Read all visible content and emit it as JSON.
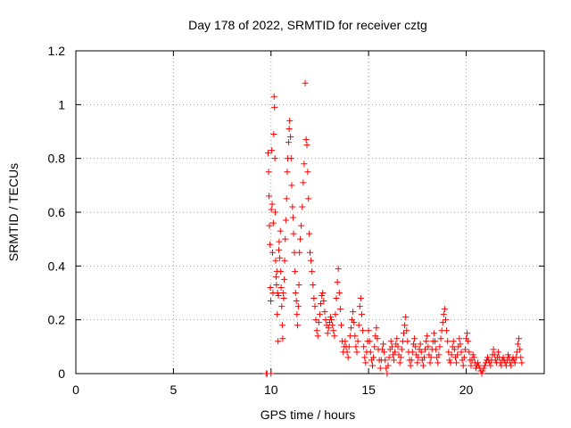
{
  "chart_data": {
    "type": "scatter",
    "title": "Day 178 of 2022, SRMTID for receiver cztg",
    "xlabel": "GPS time / hours",
    "ylabel": "SRMTID / TECUs",
    "xlim": [
      0,
      24
    ],
    "ylim": [
      0,
      1.2
    ],
    "xticks": [
      0,
      5,
      10,
      15,
      20
    ],
    "yticks": [
      0,
      0.2,
      0.4,
      0.6,
      0.8,
      1,
      1.2
    ],
    "xtick_labels": [
      "0",
      "5",
      "10",
      "15",
      "20"
    ],
    "ytick_labels": [
      "0",
      "0.2",
      "0.4",
      "0.6",
      "0.8",
      "1",
      "1.2"
    ],
    "grid": true,
    "marker": "+",
    "color": "#ff0000",
    "series": [
      {
        "name": "SRMTID",
        "points": [
          [
            9.75,
            0.0
          ],
          [
            9.8,
            0.0
          ],
          [
            9.85,
            0.82
          ],
          [
            9.88,
            0.75
          ],
          [
            9.9,
            0.66
          ],
          [
            9.92,
            0.55
          ],
          [
            9.95,
            0.48
          ],
          [
            9.97,
            0.32
          ],
          [
            9.99,
            0.27
          ],
          [
            10.0,
            0.0
          ],
          [
            10.02,
            0.61
          ],
          [
            10.04,
            0.83
          ],
          [
            10.06,
            0.63
          ],
          [
            10.08,
            0.45
          ],
          [
            10.1,
            0.3
          ],
          [
            10.12,
            0.56
          ],
          [
            10.14,
            0.89
          ],
          [
            10.16,
            1.03
          ],
          [
            10.18,
            0.99
          ],
          [
            10.2,
            0.8
          ],
          [
            10.22,
            0.6
          ],
          [
            10.24,
            0.42
          ],
          [
            10.26,
            0.36
          ],
          [
            10.28,
            0.33
          ],
          [
            10.3,
            0.38
          ],
          [
            10.32,
            0.22
          ],
          [
            10.34,
            0.3
          ],
          [
            10.36,
            0.12
          ],
          [
            10.38,
            0.29
          ],
          [
            10.4,
            0.46
          ],
          [
            10.42,
            0.49
          ],
          [
            10.45,
            0.43
          ],
          [
            10.48,
            0.53
          ],
          [
            10.5,
            0.38
          ],
          [
            10.52,
            0.32
          ],
          [
            10.55,
            0.25
          ],
          [
            10.58,
            0.18
          ],
          [
            10.6,
            0.13
          ],
          [
            10.62,
            0.3
          ],
          [
            10.65,
            0.28
          ],
          [
            10.68,
            0.35
          ],
          [
            10.7,
            0.42
          ],
          [
            10.73,
            0.5
          ],
          [
            10.76,
            0.57
          ],
          [
            10.8,
            0.65
          ],
          [
            10.83,
            0.75
          ],
          [
            10.86,
            0.8
          ],
          [
            10.9,
            0.86
          ],
          [
            10.93,
            0.91
          ],
          [
            10.96,
            0.94
          ],
          [
            11.0,
            0.88
          ],
          [
            11.03,
            0.8
          ],
          [
            11.06,
            0.7
          ],
          [
            11.1,
            0.62
          ],
          [
            11.13,
            0.58
          ],
          [
            11.16,
            0.52
          ],
          [
            11.2,
            0.45
          ],
          [
            11.23,
            0.38
          ],
          [
            11.26,
            0.3
          ],
          [
            11.3,
            0.27
          ],
          [
            11.33,
            0.22
          ],
          [
            11.36,
            0.18
          ],
          [
            11.4,
            0.25
          ],
          [
            11.43,
            0.33
          ],
          [
            11.46,
            0.45
          ],
          [
            11.5,
            0.5
          ],
          [
            11.55,
            0.55
          ],
          [
            11.6,
            0.62
          ],
          [
            11.65,
            0.71
          ],
          [
            11.7,
            0.78
          ],
          [
            11.75,
            1.08
          ],
          [
            11.8,
            0.87
          ],
          [
            11.84,
            0.85
          ],
          [
            11.88,
            0.75
          ],
          [
            11.92,
            0.65
          ],
          [
            11.96,
            0.52
          ],
          [
            12.0,
            0.45
          ],
          [
            12.05,
            0.42
          ],
          [
            12.1,
            0.38
          ],
          [
            12.15,
            0.33
          ],
          [
            12.2,
            0.28
          ],
          [
            12.25,
            0.25
          ],
          [
            12.3,
            0.2
          ],
          [
            12.35,
            0.16
          ],
          [
            12.4,
            0.14
          ],
          [
            12.45,
            0.19
          ],
          [
            12.5,
            0.22
          ],
          [
            12.55,
            0.26
          ],
          [
            12.6,
            0.29
          ],
          [
            12.65,
            0.3
          ],
          [
            12.7,
            0.27
          ],
          [
            12.75,
            0.23
          ],
          [
            12.8,
            0.2
          ],
          [
            12.85,
            0.18
          ],
          [
            12.9,
            0.15
          ],
          [
            12.95,
            0.17
          ],
          [
            13.0,
            0.19
          ],
          [
            13.05,
            0.21
          ],
          [
            13.1,
            0.2
          ],
          [
            13.15,
            0.18
          ],
          [
            13.2,
            0.16
          ],
          [
            13.25,
            0.14
          ],
          [
            13.3,
            0.22
          ],
          [
            13.35,
            0.28
          ],
          [
            13.4,
            0.34
          ],
          [
            13.45,
            0.39
          ],
          [
            13.5,
            0.3
          ],
          [
            13.55,
            0.24
          ],
          [
            13.6,
            0.18
          ],
          [
            13.65,
            0.12
          ],
          [
            13.7,
            0.08
          ],
          [
            13.75,
            0.1
          ],
          [
            13.8,
            0.12
          ],
          [
            13.85,
            0.1
          ],
          [
            13.9,
            0.08
          ],
          [
            13.95,
            0.06
          ],
          [
            14.0,
            0.1
          ],
          [
            14.05,
            0.14
          ],
          [
            14.1,
            0.17
          ],
          [
            14.15,
            0.2
          ],
          [
            14.2,
            0.23
          ],
          [
            14.25,
            0.19
          ],
          [
            14.3,
            0.14
          ],
          [
            14.35,
            0.1
          ],
          [
            14.4,
            0.08
          ],
          [
            14.45,
            0.12
          ],
          [
            14.5,
            0.18
          ],
          [
            14.55,
            0.25
          ],
          [
            14.6,
            0.28
          ],
          [
            14.65,
            0.22
          ],
          [
            14.7,
            0.16
          ],
          [
            14.75,
            0.1
          ],
          [
            14.8,
            0.06
          ],
          [
            14.85,
            0.04
          ],
          [
            14.9,
            0.08
          ],
          [
            14.95,
            0.12
          ],
          [
            15.0,
            0.16
          ],
          [
            15.05,
            0.12
          ],
          [
            15.1,
            0.08
          ],
          [
            15.15,
            0.05
          ],
          [
            15.2,
            0.03
          ],
          [
            15.25,
            0.06
          ],
          [
            15.3,
            0.1
          ],
          [
            15.35,
            0.14
          ],
          [
            15.4,
            0.17
          ],
          [
            15.45,
            0.13
          ],
          [
            15.5,
            0.09
          ],
          [
            15.55,
            0.05
          ],
          [
            15.6,
            0.02
          ],
          [
            15.65,
            0.05
          ],
          [
            15.7,
            0.09
          ],
          [
            15.75,
            0.11
          ],
          [
            15.8,
            0.08
          ],
          [
            15.85,
            0.05
          ],
          [
            15.9,
            0.02
          ],
          [
            15.95,
            0.0
          ],
          [
            16.0,
            0.03
          ],
          [
            16.05,
            0.06
          ],
          [
            16.1,
            0.09
          ],
          [
            16.15,
            0.12
          ],
          [
            16.2,
            0.1
          ],
          [
            16.25,
            0.07
          ],
          [
            16.3,
            0.05
          ],
          [
            16.35,
            0.08
          ],
          [
            16.4,
            0.11
          ],
          [
            16.45,
            0.13
          ],
          [
            16.5,
            0.1
          ],
          [
            16.55,
            0.07
          ],
          [
            16.6,
            0.04
          ],
          [
            16.65,
            0.06
          ],
          [
            16.7,
            0.09
          ],
          [
            16.75,
            0.12
          ],
          [
            16.8,
            0.15
          ],
          [
            16.85,
            0.18
          ],
          [
            16.9,
            0.21
          ],
          [
            16.95,
            0.16
          ],
          [
            17.0,
            0.12
          ],
          [
            17.05,
            0.08
          ],
          [
            17.1,
            0.05
          ],
          [
            17.15,
            0.03
          ],
          [
            17.2,
            0.05
          ],
          [
            17.25,
            0.08
          ],
          [
            17.3,
            0.11
          ],
          [
            17.35,
            0.13
          ],
          [
            17.4,
            0.1
          ],
          [
            17.45,
            0.07
          ],
          [
            17.5,
            0.04
          ],
          [
            17.55,
            0.06
          ],
          [
            17.6,
            0.09
          ],
          [
            17.65,
            0.11
          ],
          [
            17.7,
            0.08
          ],
          [
            17.75,
            0.05
          ],
          [
            17.8,
            0.03
          ],
          [
            17.85,
            0.06
          ],
          [
            17.9,
            0.09
          ],
          [
            17.95,
            0.12
          ],
          [
            18.0,
            0.14
          ],
          [
            18.05,
            0.1
          ],
          [
            18.1,
            0.07
          ],
          [
            18.15,
            0.04
          ],
          [
            18.2,
            0.06
          ],
          [
            18.25,
            0.09
          ],
          [
            18.3,
            0.12
          ],
          [
            18.35,
            0.15
          ],
          [
            18.4,
            0.12
          ],
          [
            18.45,
            0.09
          ],
          [
            18.5,
            0.06
          ],
          [
            18.55,
            0.04
          ],
          [
            18.6,
            0.07
          ],
          [
            18.65,
            0.1
          ],
          [
            18.7,
            0.13
          ],
          [
            18.75,
            0.16
          ],
          [
            18.8,
            0.19
          ],
          [
            18.85,
            0.22
          ],
          [
            18.9,
            0.24
          ],
          [
            18.95,
            0.2
          ],
          [
            19.0,
            0.16
          ],
          [
            19.05,
            0.12
          ],
          [
            19.1,
            0.08
          ],
          [
            19.15,
            0.05
          ],
          [
            19.2,
            0.04
          ],
          [
            19.25,
            0.07
          ],
          [
            19.3,
            0.1
          ],
          [
            19.35,
            0.12
          ],
          [
            19.4,
            0.09
          ],
          [
            19.45,
            0.06
          ],
          [
            19.5,
            0.04
          ],
          [
            19.55,
            0.07
          ],
          [
            19.6,
            0.1
          ],
          [
            19.65,
            0.13
          ],
          [
            19.7,
            0.11
          ],
          [
            19.75,
            0.08
          ],
          [
            19.8,
            0.05
          ],
          [
            19.85,
            0.03
          ],
          [
            19.9,
            0.06
          ],
          [
            19.95,
            0.09
          ],
          [
            20.0,
            0.13
          ],
          [
            20.05,
            0.15
          ],
          [
            20.1,
            0.12
          ],
          [
            20.15,
            0.08
          ],
          [
            20.2,
            0.05
          ],
          [
            20.25,
            0.03
          ],
          [
            20.3,
            0.05
          ],
          [
            20.35,
            0.07
          ],
          [
            20.4,
            0.06
          ],
          [
            20.45,
            0.04
          ],
          [
            20.5,
            0.02
          ],
          [
            20.55,
            0.03
          ],
          [
            20.6,
            0.04
          ],
          [
            20.65,
            0.03
          ],
          [
            20.7,
            0.02
          ],
          [
            20.75,
            0.01
          ],
          [
            20.8,
            0.0
          ],
          [
            20.85,
            0.01
          ],
          [
            20.9,
            0.02
          ],
          [
            20.95,
            0.03
          ],
          [
            21.0,
            0.04
          ],
          [
            21.05,
            0.05
          ],
          [
            21.1,
            0.06
          ],
          [
            21.15,
            0.05
          ],
          [
            21.2,
            0.04
          ],
          [
            21.25,
            0.03
          ],
          [
            21.3,
            0.05
          ],
          [
            21.35,
            0.07
          ],
          [
            21.4,
            0.09
          ],
          [
            21.45,
            0.07
          ],
          [
            21.5,
            0.05
          ],
          [
            21.55,
            0.04
          ],
          [
            21.6,
            0.06
          ],
          [
            21.65,
            0.08
          ],
          [
            21.7,
            0.06
          ],
          [
            21.75,
            0.04
          ],
          [
            21.8,
            0.03
          ],
          [
            21.85,
            0.05
          ],
          [
            21.9,
            0.06
          ],
          [
            21.95,
            0.05
          ],
          [
            22.0,
            0.04
          ],
          [
            22.05,
            0.03
          ],
          [
            22.1,
            0.05
          ],
          [
            22.15,
            0.07
          ],
          [
            22.2,
            0.06
          ],
          [
            22.25,
            0.04
          ],
          [
            22.3,
            0.03
          ],
          [
            22.35,
            0.05
          ],
          [
            22.4,
            0.06
          ],
          [
            22.45,
            0.05
          ],
          [
            22.5,
            0.04
          ],
          [
            22.55,
            0.06
          ],
          [
            22.6,
            0.08
          ],
          [
            22.65,
            0.11
          ],
          [
            22.7,
            0.13
          ],
          [
            22.75,
            0.09
          ],
          [
            22.8,
            0.06
          ],
          [
            22.85,
            0.04
          ]
        ]
      }
    ]
  }
}
